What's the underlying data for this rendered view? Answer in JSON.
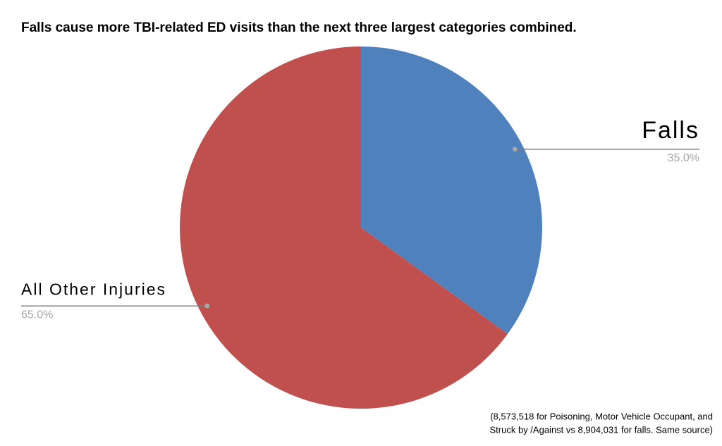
{
  "chart_data": {
    "type": "pie",
    "title": "Falls cause more TBI-related ED visits than the next three largest categories combined.",
    "categories": [
      "Falls",
      "All Other Injuries"
    ],
    "values": [
      35.0,
      65.0
    ],
    "value_labels": [
      "35.0%",
      "65.0%"
    ],
    "colors": [
      "#4f81bd",
      "#c0504d"
    ],
    "annotation": [
      "(8,573,518 for Poisoning, Motor Vehicle Occupant, and",
      "Struck by /Against vs 8,904,031 for falls. Same source)"
    ]
  }
}
